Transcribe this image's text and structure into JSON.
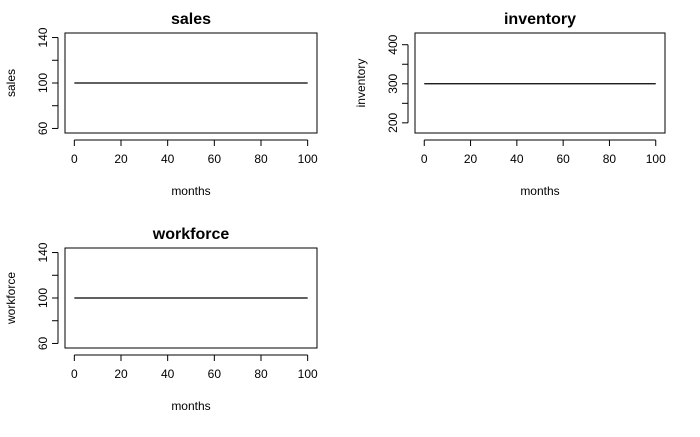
{
  "chart_data": [
    {
      "type": "line",
      "title": "sales",
      "xlabel": "months",
      "ylabel": "sales",
      "xlim": [
        0,
        100
      ],
      "ylim": [
        56,
        144
      ],
      "xticks": [
        0,
        20,
        40,
        60,
        80,
        100
      ],
      "yticks": [
        60,
        100,
        140
      ],
      "yminor": [
        80,
        120
      ],
      "x": [
        0,
        100
      ],
      "series": [
        {
          "values": [
            100,
            100
          ]
        }
      ],
      "color": "#000000",
      "grid": false
    },
    {
      "type": "line",
      "title": "inventory",
      "xlabel": "months",
      "ylabel": "inventory",
      "xlim": [
        0,
        100
      ],
      "ylim": [
        174,
        430
      ],
      "xticks": [
        0,
        20,
        40,
        60,
        80,
        100
      ],
      "yticks": [
        200,
        300,
        400
      ],
      "yminor": [
        250,
        350
      ],
      "x": [
        0,
        100
      ],
      "series": [
        {
          "values": [
            300,
            300
          ]
        }
      ],
      "color": "#000000",
      "grid": false
    },
    {
      "type": "line",
      "title": "workforce",
      "xlabel": "months",
      "ylabel": "workforce",
      "xlim": [
        0,
        100
      ],
      "ylim": [
        56,
        144
      ],
      "xticks": [
        0,
        20,
        40,
        60,
        80,
        100
      ],
      "yticks": [
        60,
        100,
        140
      ],
      "yminor": [
        80,
        120
      ],
      "x": [
        0,
        100
      ],
      "series": [
        {
          "values": [
            100,
            100
          ]
        }
      ],
      "color": "#000000",
      "grid": false
    }
  ]
}
